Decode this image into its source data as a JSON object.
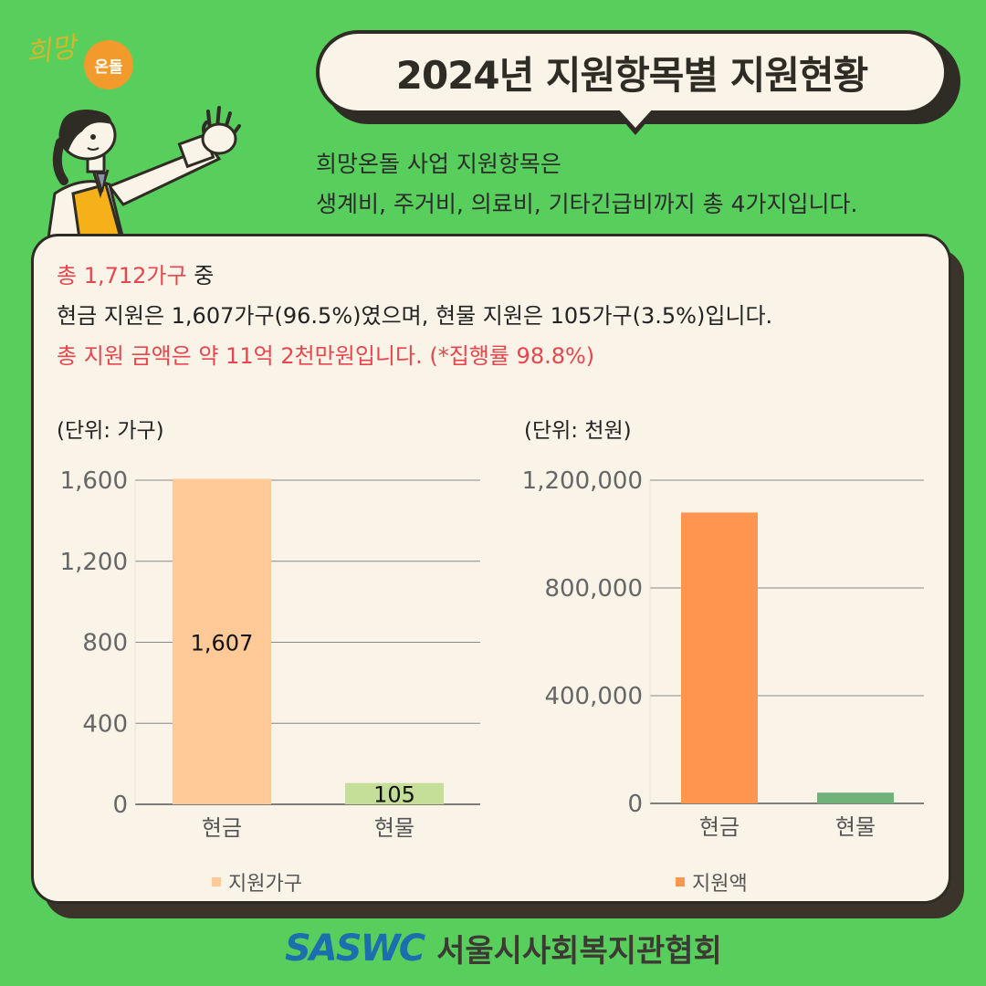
{
  "header": {
    "logo_script": "희망",
    "logo_badge": "온돌",
    "title": "2024년 지원항목별 지원현황"
  },
  "intro": {
    "line1": "희망온돌 사업 지원항목은",
    "line2": "생계비, 주거비, 의료비, 기타긴급비까지 총 4가지입니다."
  },
  "summary": {
    "line1_red": "총 1,712가구",
    "line1_rest": " 중",
    "line2": "현금 지원은 1,607가구(96.5%)였으며, 현물 지원은 105가구(3.5%)입니다.",
    "line3": "총 지원 금액은 약 11억 2천만원입니다.   (*집행률 98.8%)"
  },
  "chart_data": [
    {
      "type": "bar",
      "unit_label": "(단위: 가구)",
      "categories": [
        "현금",
        "현물"
      ],
      "series": [
        {
          "name": "지원가구",
          "values": [
            1607,
            105
          ]
        }
      ],
      "data_labels": [
        "1,607",
        "105"
      ],
      "ylim": [
        0,
        1600
      ],
      "yticks": [
        0,
        400,
        800,
        1200,
        1600
      ],
      "ytick_labels": [
        "0",
        "400",
        "800",
        "1,200",
        "1,600"
      ],
      "colors": [
        "#ffca97",
        "#c5df98"
      ],
      "legend": "bottom",
      "grid": true
    },
    {
      "type": "bar",
      "unit_label": "(단위: 천원)",
      "categories": [
        "현금",
        "현물"
      ],
      "series": [
        {
          "name": "지원액",
          "values": [
            1080000,
            40000
          ]
        }
      ],
      "ylim": [
        0,
        1200000
      ],
      "yticks": [
        0,
        400000,
        800000,
        1200000
      ],
      "ytick_labels": [
        "0",
        "400,000",
        "800,000",
        "1,200,000"
      ],
      "colors": [
        "#ff964f",
        "#6fb27a"
      ],
      "legend": "bottom",
      "grid": true
    }
  ],
  "legend_colors": [
    "#ffca97",
    "#ff964f"
  ],
  "footer": {
    "brand": "SASWC",
    "org": "서울시사회복지관협회"
  }
}
